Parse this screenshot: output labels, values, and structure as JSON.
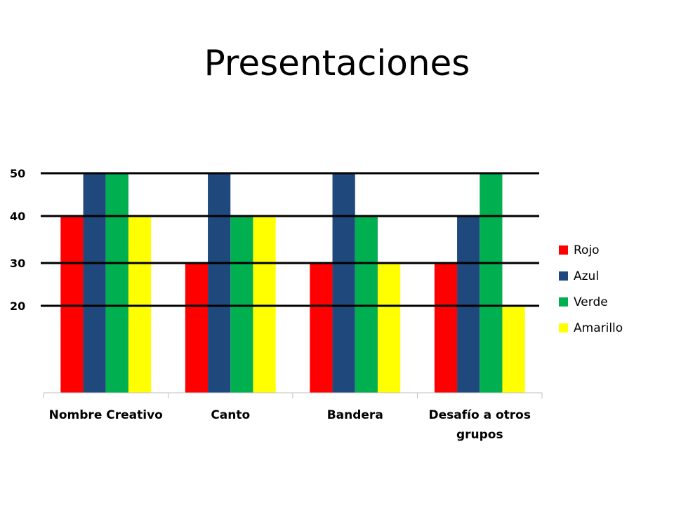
{
  "slide": {
    "title": "Presentaciones"
  },
  "chart_data": {
    "type": "bar",
    "title": "",
    "xlabel": "",
    "ylabel": "",
    "categories": [
      "Nombre Creativo",
      "Canto",
      "Bandera",
      "Desafío a otros grupos"
    ],
    "category_lines": [
      [
        "Nombre Creativo"
      ],
      [
        "Canto"
      ],
      [
        "Bandera"
      ],
      [
        "Desafío a otros",
        "grupos"
      ]
    ],
    "series": [
      {
        "name": "Rojo",
        "color": "#ff0000",
        "values": [
          40,
          30,
          30,
          30
        ]
      },
      {
        "name": "Azul",
        "color": "#1f497d",
        "values": [
          50,
          50,
          50,
          40
        ]
      },
      {
        "name": "Verde",
        "color": "#00b050",
        "values": [
          50,
          40,
          40,
          50
        ]
      },
      {
        "name": "Amarillo",
        "color": "#ffff00",
        "values": [
          40,
          40,
          30,
          20
        ]
      }
    ],
    "y_ticks": [
      20,
      30,
      40,
      50
    ],
    "ylim": [
      0,
      50
    ],
    "grid": true,
    "legend_position": "right"
  }
}
